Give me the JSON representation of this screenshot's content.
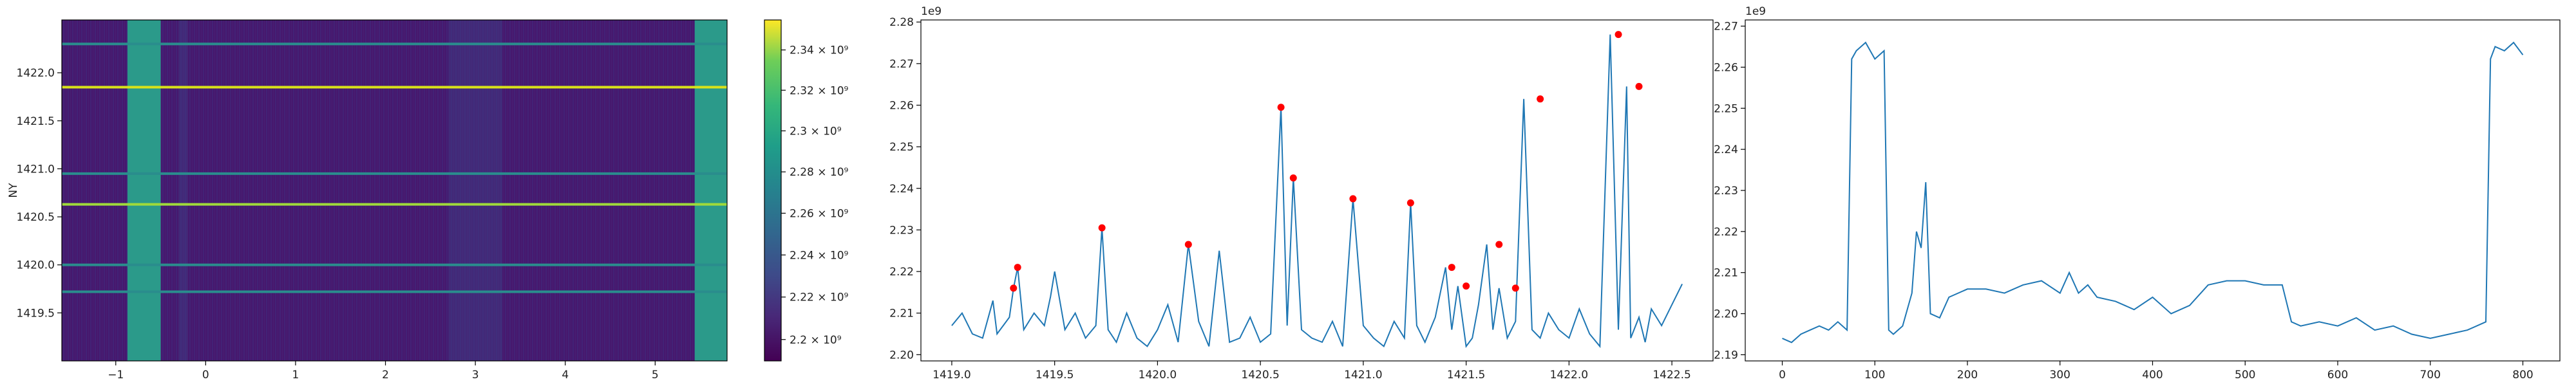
{
  "chart_data": [
    {
      "type": "heatmap",
      "ylabel": "NY",
      "xlim": [
        -1.6,
        5.8
      ],
      "ylim": [
        1419.0,
        1422.55
      ],
      "xticks": [
        "−1",
        "0",
        "1",
        "2",
        "3",
        "4",
        "5"
      ],
      "xtick_values": [
        -1,
        0,
        1,
        2,
        3,
        4,
        5
      ],
      "yticks": [
        "1419.5",
        "1420.0",
        "1420.5",
        "1421.0",
        "1421.5",
        "1422.0"
      ],
      "ytick_values": [
        1419.5,
        1420.0,
        1420.5,
        1421.0,
        1421.5,
        1422.0
      ],
      "bright_columns_x": [
        [
          -0.87,
          -0.5
        ],
        [
          5.44,
          5.8
        ]
      ],
      "bright_rows_y": [
        1421.85,
        1420.63,
        1422.3,
        1420.95,
        1420.0,
        1419.72
      ],
      "colormap": "viridis",
      "colorbar": {
        "scale": "log",
        "range": [
          2190000000.0,
          2355000000.0
        ],
        "ticks": [
          "2.2 × 10⁹",
          "2.22 × 10⁹",
          "2.24 × 10⁹",
          "2.26 × 10⁹",
          "2.28 × 10⁹",
          "2.3 × 10⁹",
          "2.32 × 10⁹",
          "2.34 × 10⁹"
        ],
        "tick_values": [
          2200000000.0,
          2220000000.0,
          2240000000.0,
          2260000000.0,
          2280000000.0,
          2300000000.0,
          2320000000.0,
          2340000000.0
        ]
      }
    },
    {
      "type": "line",
      "offset_label": "1e9",
      "xlim": [
        1418.85,
        1422.7
      ],
      "ylim": [
        2.1985,
        2.2805
      ],
      "xticks": [
        "1419.0",
        "1419.5",
        "1420.0",
        "1420.5",
        "1421.0",
        "1421.5",
        "1422.0",
        "1422.5"
      ],
      "xtick_values": [
        1419.0,
        1419.5,
        1420.0,
        1420.5,
        1421.0,
        1421.5,
        1422.0,
        1422.5
      ],
      "yticks": [
        "2.20",
        "2.21",
        "2.22",
        "2.23",
        "2.24",
        "2.25",
        "2.26",
        "2.27",
        "2.28"
      ],
      "ytick_values": [
        2.2,
        2.21,
        2.22,
        2.23,
        2.24,
        2.25,
        2.26,
        2.27,
        2.28
      ],
      "line_color": "#1f77b4",
      "series": [
        {
          "x": [
            1419.0,
            1419.05,
            1419.1,
            1419.15,
            1419.2,
            1419.22,
            1419.25,
            1419.28,
            1419.3,
            1419.32,
            1419.35,
            1419.4,
            1419.45,
            1419.48,
            1419.5,
            1419.55,
            1419.6,
            1419.65,
            1419.7,
            1419.73,
            1419.76,
            1419.8,
            1419.85,
            1419.9,
            1419.95,
            1420.0,
            1420.05,
            1420.1,
            1420.15,
            1420.2,
            1420.25,
            1420.3,
            1420.35,
            1420.4,
            1420.45,
            1420.5,
            1420.55,
            1420.6,
            1420.63,
            1420.66,
            1420.7,
            1420.75,
            1420.8,
            1420.85,
            1420.9,
            1420.95,
            1421.0,
            1421.05,
            1421.1,
            1421.15,
            1421.2,
            1421.23,
            1421.26,
            1421.3,
            1421.35,
            1421.4,
            1421.43,
            1421.46,
            1421.5,
            1421.53,
            1421.56,
            1421.6,
            1421.63,
            1421.66,
            1421.7,
            1421.74,
            1421.78,
            1421.82,
            1421.86,
            1421.9,
            1421.95,
            1422.0,
            1422.05,
            1422.1,
            1422.15,
            1422.2,
            1422.24,
            1422.28,
            1422.3,
            1422.34,
            1422.37,
            1422.4,
            1422.45,
            1422.5,
            1422.55
          ],
          "values": [
            2.207,
            2.21,
            2.205,
            2.204,
            2.213,
            2.205,
            2.207,
            2.209,
            2.216,
            2.221,
            2.206,
            2.21,
            2.207,
            2.214,
            2.22,
            2.206,
            2.21,
            2.204,
            2.207,
            2.2305,
            2.206,
            2.203,
            2.21,
            2.204,
            2.202,
            2.206,
            2.212,
            2.203,
            2.2265,
            2.208,
            2.202,
            2.225,
            2.203,
            2.204,
            2.209,
            2.203,
            2.205,
            2.2595,
            2.207,
            2.2425,
            2.206,
            2.204,
            2.203,
            2.208,
            2.202,
            2.2375,
            2.207,
            2.204,
            2.202,
            2.208,
            2.204,
            2.2365,
            2.207,
            2.203,
            2.209,
            2.221,
            2.206,
            2.2165,
            2.202,
            2.204,
            2.212,
            2.2265,
            2.206,
            2.216,
            2.204,
            2.208,
            2.2615,
            2.206,
            2.204,
            2.21,
            2.206,
            2.204,
            2.211,
            2.205,
            2.202,
            2.277,
            2.206,
            2.2645,
            2.204,
            2.209,
            2.203,
            2.211,
            2.207,
            2.212,
            2.217
          ]
        }
      ],
      "peaks": {
        "color": "#ff0000",
        "x": [
          1419.3,
          1419.32,
          1419.73,
          1420.15,
          1420.6,
          1420.66,
          1420.95,
          1421.23,
          1421.43,
          1421.5,
          1421.66,
          1421.74,
          1421.86,
          1422.24,
          1422.34
        ],
        "values": [
          2.216,
          2.221,
          2.2305,
          2.2265,
          2.2595,
          2.2425,
          2.2375,
          2.2365,
          2.221,
          2.2165,
          2.2265,
          2.216,
          2.2615,
          2.277,
          2.2645
        ]
      }
    },
    {
      "type": "line",
      "offset_label": "1e9",
      "xlim": [
        -40,
        840
      ],
      "ylim": [
        2.1885,
        2.2715
      ],
      "xticks": [
        "0",
        "100",
        "200",
        "300",
        "400",
        "500",
        "600",
        "700",
        "800"
      ],
      "xtick_values": [
        0,
        100,
        200,
        300,
        400,
        500,
        600,
        700,
        800
      ],
      "yticks": [
        "2.19",
        "2.20",
        "2.21",
        "2.22",
        "2.23",
        "2.24",
        "2.25",
        "2.26",
        "2.27"
      ],
      "ytick_values": [
        2.19,
        2.2,
        2.21,
        2.22,
        2.23,
        2.24,
        2.25,
        2.26,
        2.27
      ],
      "line_color": "#1f77b4",
      "series": [
        {
          "x": [
            0,
            10,
            20,
            30,
            40,
            50,
            60,
            70,
            75,
            80,
            90,
            100,
            110,
            115,
            120,
            130,
            140,
            145,
            150,
            155,
            160,
            170,
            180,
            200,
            220,
            240,
            260,
            280,
            300,
            310,
            320,
            330,
            340,
            360,
            380,
            400,
            420,
            440,
            460,
            480,
            500,
            520,
            540,
            550,
            560,
            580,
            600,
            620,
            640,
            660,
            680,
            700,
            720,
            740,
            760,
            765,
            770,
            780,
            790,
            800
          ],
          "values": [
            2.194,
            2.193,
            2.195,
            2.196,
            2.197,
            2.196,
            2.198,
            2.196,
            2.262,
            2.264,
            2.266,
            2.262,
            2.264,
            2.196,
            2.195,
            2.197,
            2.205,
            2.22,
            2.216,
            2.232,
            2.2,
            2.199,
            2.204,
            2.206,
            2.206,
            2.205,
            2.207,
            2.208,
            2.205,
            2.21,
            2.205,
            2.207,
            2.204,
            2.203,
            2.201,
            2.204,
            2.2,
            2.202,
            2.207,
            2.208,
            2.208,
            2.207,
            2.207,
            2.198,
            2.197,
            2.198,
            2.197,
            2.199,
            2.196,
            2.197,
            2.195,
            2.194,
            2.195,
            2.196,
            2.198,
            2.262,
            2.265,
            2.264,
            2.266,
            2.263
          ]
        }
      ]
    }
  ]
}
